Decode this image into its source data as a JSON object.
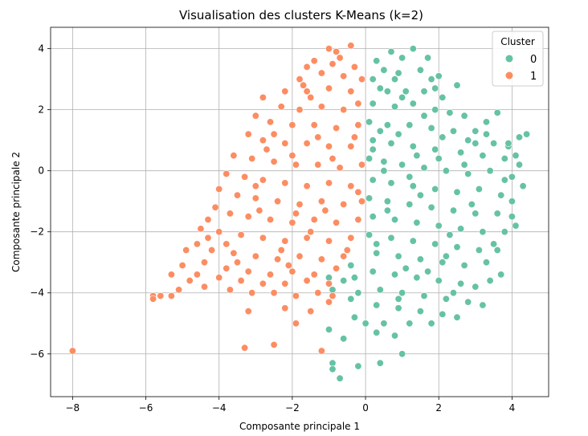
{
  "chart_data": {
    "type": "scatter",
    "title": "Visualisation des clusters K-Means (k=2)",
    "xlabel": "Composante principale 1",
    "ylabel": "Composante principale 2",
    "xlim": [
      -8.6,
      5.0
    ],
    "ylim": [
      -7.4,
      4.7
    ],
    "x_ticks": [
      -8,
      -6,
      -4,
      -2,
      0,
      2,
      4
    ],
    "y_ticks": [
      -6,
      -4,
      -2,
      0,
      2,
      4
    ],
    "x_tick_labels": [
      "−8",
      "−6",
      "−4",
      "−2",
      "0",
      "2",
      "4"
    ],
    "y_tick_labels": [
      "−6",
      "−4",
      "−2",
      "0",
      "2",
      "4"
    ],
    "grid": true,
    "legend": {
      "title": "Cluster",
      "position": "top-right",
      "entries": [
        {
          "label": "0",
          "color": "#66c2a5"
        },
        {
          "label": "1",
          "color": "#fc8d62"
        }
      ]
    },
    "series": [
      {
        "name": "0",
        "color": "#66c2a5",
        "points": [
          [
            0.3,
            3.6
          ],
          [
            0.7,
            3.9
          ],
          [
            1.0,
            3.7
          ],
          [
            1.3,
            4.0
          ],
          [
            0.5,
            3.3
          ],
          [
            0.9,
            3.2
          ],
          [
            1.5,
            3.3
          ],
          [
            1.8,
            3.0
          ],
          [
            2.0,
            3.1
          ],
          [
            0.2,
            3.0
          ],
          [
            0.6,
            2.6
          ],
          [
            1.1,
            2.6
          ],
          [
            1.6,
            2.6
          ],
          [
            2.1,
            2.4
          ],
          [
            2.5,
            2.8
          ],
          [
            0.2,
            2.2
          ],
          [
            0.8,
            2.1
          ],
          [
            1.3,
            2.2
          ],
          [
            1.9,
            2.0
          ],
          [
            2.3,
            1.9
          ],
          [
            2.7,
            1.8
          ],
          [
            3.0,
            1.3
          ],
          [
            3.3,
            1.6
          ],
          [
            3.6,
            1.9
          ],
          [
            0.1,
            1.6
          ],
          [
            0.6,
            1.5
          ],
          [
            1.2,
            1.5
          ],
          [
            1.8,
            1.4
          ],
          [
            2.4,
            1.3
          ],
          [
            3.0,
            0.9
          ],
          [
            3.5,
            0.9
          ],
          [
            3.9,
            0.8
          ],
          [
            4.2,
            1.1
          ],
          [
            4.4,
            1.2
          ],
          [
            0.2,
            1.0
          ],
          [
            0.7,
            0.9
          ],
          [
            1.3,
            0.8
          ],
          [
            1.9,
            0.7
          ],
          [
            2.6,
            0.6
          ],
          [
            3.2,
            0.5
          ],
          [
            3.8,
            0.4
          ],
          [
            4.1,
            0.5
          ],
          [
            0.1,
            0.4
          ],
          [
            0.5,
            0.3
          ],
          [
            1.0,
            0.2
          ],
          [
            1.6,
            0.1
          ],
          [
            2.2,
            0.0
          ],
          [
            2.8,
            -0.1
          ],
          [
            3.4,
            0.0
          ],
          [
            4.0,
            -0.2
          ],
          [
            4.3,
            -0.5
          ],
          [
            0.2,
            -0.3
          ],
          [
            0.7,
            -0.4
          ],
          [
            1.3,
            -0.5
          ],
          [
            1.9,
            -0.6
          ],
          [
            2.5,
            -0.7
          ],
          [
            3.1,
            -0.6
          ],
          [
            3.7,
            -0.8
          ],
          [
            4.0,
            -1.0
          ],
          [
            0.1,
            -0.9
          ],
          [
            0.6,
            -1.0
          ],
          [
            1.2,
            -1.1
          ],
          [
            1.8,
            -1.2
          ],
          [
            2.4,
            -1.3
          ],
          [
            3.0,
            -1.4
          ],
          [
            3.6,
            -1.4
          ],
          [
            4.0,
            -1.5
          ],
          [
            0.2,
            -1.5
          ],
          [
            0.8,
            -1.6
          ],
          [
            1.4,
            -1.7
          ],
          [
            2.0,
            -1.8
          ],
          [
            2.6,
            -1.9
          ],
          [
            3.2,
            -2.0
          ],
          [
            3.8,
            -2.0
          ],
          [
            0.1,
            -2.1
          ],
          [
            0.7,
            -2.2
          ],
          [
            1.3,
            -2.3
          ],
          [
            1.9,
            -2.4
          ],
          [
            2.5,
            -2.5
          ],
          [
            3.1,
            -2.6
          ],
          [
            3.5,
            -2.4
          ],
          [
            0.3,
            -2.7
          ],
          [
            0.9,
            -2.8
          ],
          [
            1.5,
            -2.9
          ],
          [
            2.1,
            -3.0
          ],
          [
            2.7,
            -3.1
          ],
          [
            3.3,
            -3.0
          ],
          [
            3.7,
            -3.4
          ],
          [
            0.2,
            -3.3
          ],
          [
            0.8,
            -3.4
          ],
          [
            1.4,
            -3.5
          ],
          [
            2.0,
            -3.6
          ],
          [
            2.6,
            -3.7
          ],
          [
            3.4,
            -3.6
          ],
          [
            -0.3,
            -3.5
          ],
          [
            -0.6,
            -3.6
          ],
          [
            0.4,
            -3.9
          ],
          [
            1.0,
            -4.0
          ],
          [
            1.6,
            -4.1
          ],
          [
            2.2,
            -4.2
          ],
          [
            2.8,
            -4.3
          ],
          [
            3.2,
            -4.4
          ],
          [
            -0.2,
            -4.0
          ],
          [
            -0.4,
            -4.2
          ],
          [
            0.3,
            -4.4
          ],
          [
            0.9,
            -4.5
          ],
          [
            1.5,
            -4.6
          ],
          [
            2.1,
            -4.7
          ],
          [
            2.5,
            -4.8
          ],
          [
            -0.3,
            -4.8
          ],
          [
            0.0,
            -5.0
          ],
          [
            0.5,
            -5.0
          ],
          [
            1.2,
            -5.0
          ],
          [
            1.8,
            -5.0
          ],
          [
            -1.0,
            -5.2
          ],
          [
            -0.6,
            -5.5
          ],
          [
            0.3,
            -5.3
          ],
          [
            0.8,
            -5.4
          ],
          [
            1.0,
            -6.0
          ],
          [
            0.4,
            -6.3
          ],
          [
            -0.2,
            -6.4
          ],
          [
            -0.9,
            -6.3
          ],
          [
            -0.9,
            -6.5
          ],
          [
            -0.7,
            -6.8
          ],
          [
            -1.0,
            -3.5
          ],
          [
            -0.9,
            -3.9
          ],
          [
            -0.4,
            -3.1
          ],
          [
            0.5,
            0.0
          ],
          [
            1.2,
            -0.2
          ],
          [
            2.0,
            0.4
          ],
          [
            2.8,
            1.0
          ],
          [
            1.6,
            1.8
          ],
          [
            0.4,
            2.7
          ],
          [
            0.9,
            1.2
          ],
          [
            2.2,
            -2.8
          ],
          [
            1.1,
            -3.2
          ],
          [
            3.0,
            -3.8
          ],
          [
            4.2,
            0.2
          ],
          [
            3.8,
            -0.3
          ],
          [
            2.7,
            0.2
          ],
          [
            1.0,
            2.4
          ],
          [
            1.4,
            0.5
          ],
          [
            0.6,
            -1.3
          ],
          [
            2.9,
            -1.1
          ],
          [
            0.3,
            -2.4
          ],
          [
            1.7,
            -3.3
          ],
          [
            2.4,
            -4.0
          ],
          [
            3.6,
            -2.6
          ],
          [
            0.8,
            3.0
          ],
          [
            1.7,
            3.7
          ],
          [
            0.4,
            1.3
          ],
          [
            2.1,
            1.1
          ],
          [
            3.3,
            1.2
          ],
          [
            1.5,
            -0.8
          ],
          [
            2.3,
            -2.1
          ],
          [
            0.9,
            -4.2
          ],
          [
            3.9,
            0.9
          ],
          [
            4.1,
            -1.8
          ],
          [
            1.9,
            2.7
          ],
          [
            0.2,
            0.7
          ]
        ]
      },
      {
        "name": "1",
        "color": "#fc8d62",
        "points": [
          [
            -1.0,
            4.0
          ],
          [
            -0.4,
            4.1
          ],
          [
            -0.8,
            3.9
          ],
          [
            -1.4,
            3.6
          ],
          [
            -1.6,
            3.4
          ],
          [
            -0.9,
            3.5
          ],
          [
            -0.3,
            3.4
          ],
          [
            -1.2,
            3.2
          ],
          [
            -0.6,
            3.1
          ],
          [
            -1.8,
            3.0
          ],
          [
            -0.1,
            3.0
          ],
          [
            -2.2,
            2.6
          ],
          [
            -1.6,
            2.6
          ],
          [
            -1.0,
            2.7
          ],
          [
            -0.4,
            2.6
          ],
          [
            -2.8,
            2.4
          ],
          [
            -2.3,
            2.1
          ],
          [
            -1.8,
            2.0
          ],
          [
            -1.2,
            2.1
          ],
          [
            -0.6,
            2.0
          ],
          [
            -0.2,
            2.2
          ],
          [
            -3.0,
            1.8
          ],
          [
            -2.6,
            1.6
          ],
          [
            -2.0,
            1.5
          ],
          [
            -1.4,
            1.5
          ],
          [
            -0.8,
            1.4
          ],
          [
            -0.2,
            1.5
          ],
          [
            -3.2,
            1.2
          ],
          [
            -2.8,
            1.0
          ],
          [
            -2.2,
            0.9
          ],
          [
            -1.6,
            0.9
          ],
          [
            -1.0,
            0.8
          ],
          [
            -0.4,
            0.8
          ],
          [
            -3.6,
            0.5
          ],
          [
            -3.1,
            0.4
          ],
          [
            -2.5,
            0.3
          ],
          [
            -1.9,
            0.2
          ],
          [
            -1.3,
            0.2
          ],
          [
            -0.7,
            0.1
          ],
          [
            -0.1,
            0.2
          ],
          [
            -3.8,
            -0.1
          ],
          [
            -3.3,
            -0.2
          ],
          [
            -2.8,
            -0.3
          ],
          [
            -2.2,
            -0.4
          ],
          [
            -1.6,
            -0.5
          ],
          [
            -1.0,
            -0.4
          ],
          [
            -0.4,
            -0.5
          ],
          [
            -4.0,
            -0.6
          ],
          [
            -3.5,
            -0.8
          ],
          [
            -3.0,
            -0.9
          ],
          [
            -2.4,
            -1.0
          ],
          [
            -1.8,
            -1.1
          ],
          [
            -1.2,
            -1.0
          ],
          [
            -0.6,
            -1.1
          ],
          [
            -0.1,
            -1.0
          ],
          [
            -4.1,
            -1.2
          ],
          [
            -3.7,
            -1.4
          ],
          [
            -3.2,
            -1.5
          ],
          [
            -2.6,
            -1.6
          ],
          [
            -2.0,
            -1.7
          ],
          [
            -1.4,
            -1.6
          ],
          [
            -0.8,
            -1.7
          ],
          [
            -0.2,
            -1.6
          ],
          [
            -4.3,
            -1.6
          ],
          [
            -4.5,
            -1.9
          ],
          [
            -4.0,
            -2.0
          ],
          [
            -3.4,
            -2.1
          ],
          [
            -2.8,
            -2.2
          ],
          [
            -2.2,
            -2.3
          ],
          [
            -1.6,
            -2.2
          ],
          [
            -1.0,
            -2.3
          ],
          [
            -0.4,
            -2.2
          ],
          [
            -4.6,
            -2.4
          ],
          [
            -4.2,
            -2.6
          ],
          [
            -3.6,
            -2.7
          ],
          [
            -3.0,
            -2.8
          ],
          [
            -2.4,
            -2.9
          ],
          [
            -1.8,
            -2.8
          ],
          [
            -1.2,
            -2.9
          ],
          [
            -0.6,
            -2.8
          ],
          [
            -4.9,
            -2.6
          ],
          [
            -4.4,
            -3.0
          ],
          [
            -3.8,
            -3.2
          ],
          [
            -3.2,
            -3.3
          ],
          [
            -2.6,
            -3.4
          ],
          [
            -2.0,
            -3.3
          ],
          [
            -1.4,
            -3.4
          ],
          [
            -0.8,
            -3.2
          ],
          [
            -5.0,
            -3.1
          ],
          [
            -4.6,
            -3.4
          ],
          [
            -4.0,
            -3.5
          ],
          [
            -3.4,
            -3.6
          ],
          [
            -2.8,
            -3.7
          ],
          [
            -2.2,
            -3.7
          ],
          [
            -1.6,
            -3.6
          ],
          [
            -1.0,
            -3.7
          ],
          [
            -5.3,
            -3.4
          ],
          [
            -4.8,
            -3.6
          ],
          [
            -5.1,
            -3.9
          ],
          [
            -4.4,
            -3.8
          ],
          [
            -3.7,
            -3.9
          ],
          [
            -3.1,
            -4.0
          ],
          [
            -2.5,
            -4.0
          ],
          [
            -1.9,
            -4.1
          ],
          [
            -1.3,
            -4.0
          ],
          [
            -0.9,
            -4.1
          ],
          [
            -5.6,
            -4.1
          ],
          [
            -5.8,
            -4.1
          ],
          [
            -5.3,
            -4.1
          ],
          [
            -5.8,
            -4.2
          ],
          [
            -3.2,
            -4.6
          ],
          [
            -2.2,
            -4.5
          ],
          [
            -1.5,
            -4.6
          ],
          [
            -1.0,
            -4.3
          ],
          [
            -1.9,
            -5.0
          ],
          [
            -3.3,
            -5.8
          ],
          [
            -2.5,
            -5.7
          ],
          [
            -1.2,
            -5.9
          ],
          [
            -8.0,
            -5.9
          ],
          [
            -1.5,
            2.4
          ],
          [
            -2.5,
            1.2
          ],
          [
            -0.9,
            0.4
          ],
          [
            -3.0,
            -0.5
          ],
          [
            -1.9,
            -1.4
          ],
          [
            -3.8,
            -2.4
          ],
          [
            -2.3,
            -2.6
          ],
          [
            -0.5,
            -2.6
          ],
          [
            -1.1,
            -1.3
          ],
          [
            -2.7,
            0.7
          ],
          [
            -0.3,
            1.1
          ],
          [
            -1.7,
            2.8
          ],
          [
            -0.7,
            3.7
          ],
          [
            -2.1,
            -3.1
          ],
          [
            -3.5,
            -3.0
          ],
          [
            -0.2,
            -0.7
          ],
          [
            -1.3,
            1.1
          ],
          [
            -2.9,
            -1.3
          ],
          [
            -4.3,
            -2.2
          ],
          [
            -1.5,
            -2.0
          ],
          [
            -2.0,
            0.5
          ]
        ]
      }
    ]
  }
}
